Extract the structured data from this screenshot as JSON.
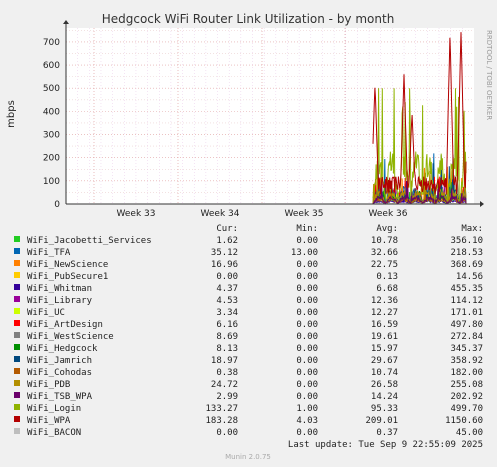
{
  "chart_data": {
    "type": "line",
    "title": "Hedgcock WiFi Router Link Utilization - by month",
    "ylabel": "mbps",
    "side_label": "RRDTOOL / TOBI OETIKER",
    "ylim": [
      0,
      760
    ],
    "y_ticks": [
      0,
      100,
      200,
      300,
      400,
      500,
      600,
      700
    ],
    "x_ticks": [
      "Week 33",
      "Week 34",
      "Week 35",
      "Week 36"
    ],
    "grid": true,
    "legend_header": {
      "cur": "Cur:",
      "min": "Min:",
      "avg": "Avg:",
      "max": "Max:"
    },
    "series": [
      {
        "name": "WiFi_Jacobetti_Services",
        "color": "#22cc22",
        "cur": "1.62",
        "min": "0.00",
        "avg": "10.78",
        "max": "356.10"
      },
      {
        "name": "WiFi_TFA",
        "color": "#0066b3",
        "cur": "35.12",
        "min": "13.00",
        "avg": "32.66",
        "max": "218.53"
      },
      {
        "name": "WiFi_NewScience",
        "color": "#ff8000",
        "cur": "16.96",
        "min": "0.00",
        "avg": "22.75",
        "max": "368.69"
      },
      {
        "name": "WiFi_PubSecure1",
        "color": "#ffcc00",
        "cur": "0.00",
        "min": "0.00",
        "avg": "0.13",
        "max": "14.56"
      },
      {
        "name": "WiFi_Whitman",
        "color": "#330099",
        "cur": "4.37",
        "min": "0.00",
        "avg": "6.68",
        "max": "455.35"
      },
      {
        "name": "WiFi_Library",
        "color": "#990099",
        "cur": "4.53",
        "min": "0.00",
        "avg": "12.36",
        "max": "114.12"
      },
      {
        "name": "WiFi_UC",
        "color": "#ccff00",
        "cur": "3.34",
        "min": "0.00",
        "avg": "12.27",
        "max": "171.01"
      },
      {
        "name": "WiFi_ArtDesign",
        "color": "#ff0000",
        "cur": "6.16",
        "min": "0.00",
        "avg": "16.59",
        "max": "497.80"
      },
      {
        "name": "WiFi_WestScience",
        "color": "#808080",
        "cur": "8.69",
        "min": "0.00",
        "avg": "19.61",
        "max": "272.84"
      },
      {
        "name": "WiFi_Hedgcock",
        "color": "#008f00",
        "cur": "8.13",
        "min": "0.00",
        "avg": "15.97",
        "max": "345.37"
      },
      {
        "name": "WiFi_Jamrich",
        "color": "#00487d",
        "cur": "18.97",
        "min": "0.00",
        "avg": "29.67",
        "max": "358.92"
      },
      {
        "name": "WiFi_Cohodas",
        "color": "#b35a00",
        "cur": "0.38",
        "min": "0.00",
        "avg": "10.74",
        "max": "182.00"
      },
      {
        "name": "WiFi_PDB",
        "color": "#b38f00",
        "cur": "24.72",
        "min": "0.00",
        "avg": "26.58",
        "max": "255.08"
      },
      {
        "name": "WiFi_TSB_WPA",
        "color": "#6b006b",
        "cur": "2.99",
        "min": "0.00",
        "avg": "14.24",
        "max": "202.92"
      },
      {
        "name": "WiFi_Login",
        "color": "#8fb300",
        "cur": "133.27",
        "min": "1.00",
        "avg": "95.33",
        "max": "499.70"
      },
      {
        "name": "WiFi_WPA",
        "color": "#b30000",
        "cur": "183.28",
        "min": "4.03",
        "avg": "209.01",
        "max": "1150.60"
      },
      {
        "name": "WiFi_BACON",
        "color": "#bebebe",
        "cur": "0.00",
        "min": "0.00",
        "avg": "0.37",
        "max": "45.00"
      }
    ]
  },
  "footer": {
    "last_update": "Last update: Tue Sep  9 22:55:09 2025",
    "munin": "Munin 2.0.75"
  }
}
